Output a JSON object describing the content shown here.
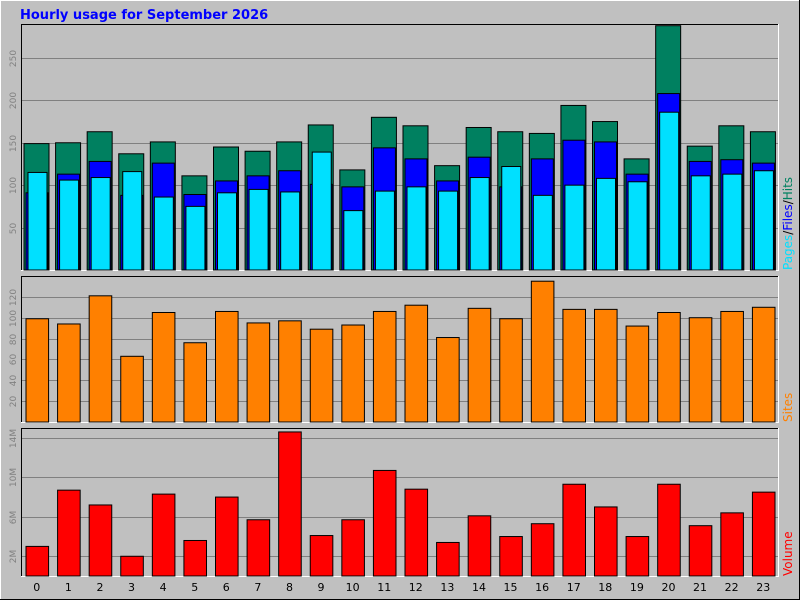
{
  "title": "Hourly usage for September 2026",
  "colors": {
    "hits": "#008060",
    "files": "#0000ff",
    "pages": "#00e0ff",
    "sites": "#ff8000",
    "volume": "#ff0000",
    "title": "#0000ff",
    "panel_bg": "#c0c0c0"
  },
  "side_labels": {
    "top": [
      "Pages",
      "/",
      "Files",
      "/",
      "Hits"
    ],
    "middle": "Sites",
    "bottom": "Volume"
  },
  "chart_data": [
    {
      "type": "bar",
      "title": "Hourly usage for September 2026",
      "categories": [
        "0",
        "1",
        "2",
        "3",
        "4",
        "5",
        "6",
        "7",
        "8",
        "9",
        "10",
        "11",
        "12",
        "13",
        "14",
        "15",
        "16",
        "17",
        "18",
        "19",
        "20",
        "21",
        "22",
        "23"
      ],
      "series": [
        {
          "name": "Hits",
          "values": [
            149,
            150,
            163,
            137,
            151,
            111,
            145,
            140,
            151,
            171,
            118,
            180,
            170,
            123,
            168,
            163,
            161,
            194,
            175,
            131,
            288,
            146,
            170,
            163
          ]
        },
        {
          "name": "Files",
          "values": [
            91,
            113,
            128,
            88,
            126,
            89,
            105,
            111,
            117,
            101,
            98,
            144,
            131,
            105,
            133,
            98,
            131,
            153,
            151,
            113,
            208,
            128,
            130,
            126
          ]
        },
        {
          "name": "Pages",
          "values": [
            115,
            106,
            109,
            116,
            86,
            75,
            91,
            95,
            92,
            139,
            70,
            93,
            98,
            93,
            109,
            122,
            88,
            100,
            108,
            104,
            186,
            111,
            113,
            117
          ]
        }
      ],
      "ylim": [
        0,
        290
      ],
      "yticks": [
        50,
        100,
        150,
        200,
        250
      ],
      "grid": true
    },
    {
      "type": "bar",
      "categories": [
        "0",
        "1",
        "2",
        "3",
        "4",
        "5",
        "6",
        "7",
        "8",
        "9",
        "10",
        "11",
        "12",
        "13",
        "14",
        "15",
        "16",
        "17",
        "18",
        "19",
        "20",
        "21",
        "22",
        "23"
      ],
      "series": [
        {
          "name": "Sites",
          "values": [
            99,
            94,
            121,
            63,
            105,
            76,
            106,
            95,
            97,
            89,
            93,
            106,
            112,
            81,
            109,
            99,
            135,
            108,
            108,
            92,
            105,
            100,
            106,
            110
          ]
        }
      ],
      "ylim": [
        0,
        140
      ],
      "yticks": [
        20,
        40,
        60,
        80,
        100,
        120
      ],
      "grid": true
    },
    {
      "type": "bar",
      "categories": [
        "0",
        "1",
        "2",
        "3",
        "4",
        "5",
        "6",
        "7",
        "8",
        "9",
        "10",
        "11",
        "12",
        "13",
        "14",
        "15",
        "16",
        "17",
        "18",
        "19",
        "20",
        "21",
        "22",
        "23"
      ],
      "series": [
        {
          "name": "Volume",
          "values": [
            3.0,
            8.7,
            7.2,
            2.0,
            8.3,
            3.6,
            8.0,
            5.7,
            14.6,
            4.1,
            5.7,
            10.7,
            8.8,
            3.4,
            6.1,
            4.0,
            5.3,
            9.3,
            7.0,
            4.0,
            9.3,
            5.1,
            6.4,
            8.5
          ]
        }
      ],
      "unit": "M",
      "ylim": [
        0,
        15
      ],
      "yticks": [
        2,
        6,
        10,
        14
      ],
      "yticklabels": [
        "2M",
        "6M",
        "10M",
        "14M"
      ],
      "grid": true
    }
  ]
}
